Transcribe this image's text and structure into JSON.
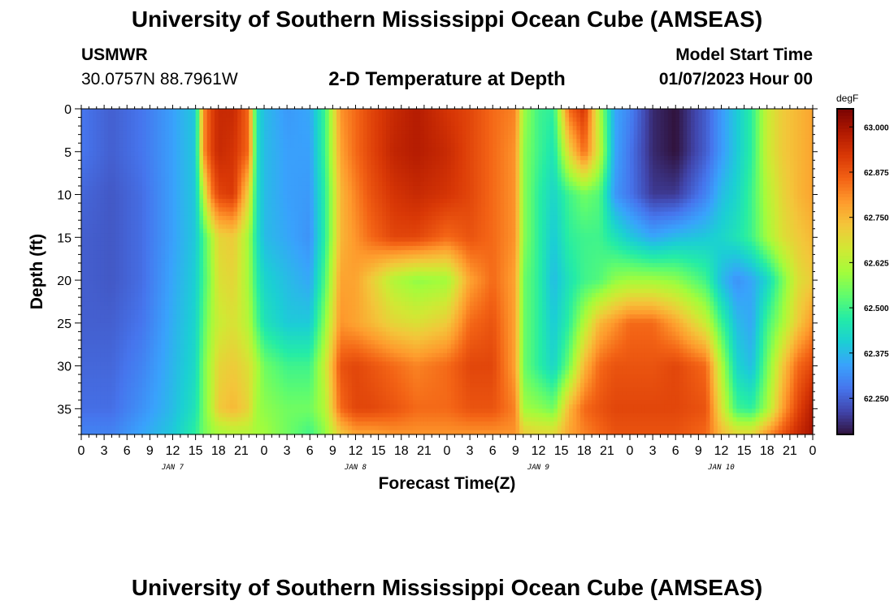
{
  "header": {
    "title": "University of Southern Mississippi Ocean Cube (AMSEAS)",
    "station": "USMWR",
    "coords": "30.0757N  88.7961W",
    "subtitle": "2-D Temperature at Depth",
    "model_start_label": "Model Start Time",
    "model_start_value": "01/07/2023 Hour 00"
  },
  "footer": {
    "title": "University of Southern Mississippi Ocean Cube (AMSEAS)"
  },
  "colors": {
    "colormap": [
      "#30123b",
      "#4145ab",
      "#4675ed",
      "#39a2fc",
      "#1bcfd4",
      "#24eca6",
      "#61fc6c",
      "#a4fc3b",
      "#d1e834",
      "#f3c63a",
      "#fe9b2d",
      "#f36315",
      "#d93806",
      "#b11901",
      "#7a0402"
    ]
  },
  "chart_data": {
    "type": "heatmap",
    "xlabel": "Forecast Time(Z)",
    "ylabel": "Depth (ft)",
    "colorbar_units": "degF",
    "x_range_hours": [
      0,
      96
    ],
    "y_range_ft": [
      0,
      38
    ],
    "x_ticks": [
      {
        "h": 0,
        "label": "0"
      },
      {
        "h": 3,
        "label": "3"
      },
      {
        "h": 6,
        "label": "6"
      },
      {
        "h": 9,
        "label": "9"
      },
      {
        "h": 12,
        "label": "12"
      },
      {
        "h": 15,
        "label": "15"
      },
      {
        "h": 18,
        "label": "18"
      },
      {
        "h": 21,
        "label": "21"
      },
      {
        "h": 24,
        "label": "0"
      },
      {
        "h": 27,
        "label": "3"
      },
      {
        "h": 30,
        "label": "6"
      },
      {
        "h": 33,
        "label": "9"
      },
      {
        "h": 36,
        "label": "12"
      },
      {
        "h": 39,
        "label": "15"
      },
      {
        "h": 42,
        "label": "18"
      },
      {
        "h": 45,
        "label": "21"
      },
      {
        "h": 48,
        "label": "0"
      },
      {
        "h": 51,
        "label": "3"
      },
      {
        "h": 54,
        "label": "6"
      },
      {
        "h": 57,
        "label": "9"
      },
      {
        "h": 60,
        "label": "12"
      },
      {
        "h": 63,
        "label": "15"
      },
      {
        "h": 66,
        "label": "18"
      },
      {
        "h": 69,
        "label": "21"
      },
      {
        "h": 72,
        "label": "0"
      },
      {
        "h": 75,
        "label": "3"
      },
      {
        "h": 78,
        "label": "6"
      },
      {
        "h": 81,
        "label": "9"
      },
      {
        "h": 84,
        "label": "12"
      },
      {
        "h": 87,
        "label": "15"
      },
      {
        "h": 90,
        "label": "18"
      },
      {
        "h": 93,
        "label": "21"
      },
      {
        "h": 96,
        "label": "0"
      }
    ],
    "date_labels": [
      {
        "h": 12,
        "label": "JAN 7"
      },
      {
        "h": 36,
        "label": "JAN 8"
      },
      {
        "h": 60,
        "label": "JAN 9"
      },
      {
        "h": 84,
        "label": "JAN 10"
      }
    ],
    "y_ticks": [
      0,
      5,
      10,
      15,
      20,
      25,
      30,
      35
    ],
    "colorbar": {
      "min": 62.15,
      "max": 63.05,
      "ticks": [
        {
          "v": 63.0,
          "label": "63.000"
        },
        {
          "v": 62.875,
          "label": "62.875"
        },
        {
          "v": 62.75,
          "label": "62.750"
        },
        {
          "v": 62.625,
          "label": "62.625"
        },
        {
          "v": 62.5,
          "label": "62.500"
        },
        {
          "v": 62.375,
          "label": "62.375"
        },
        {
          "v": 62.25,
          "label": "62.250"
        }
      ]
    },
    "grid_hours": [
      0,
      4,
      8,
      12,
      15,
      16,
      17,
      18,
      20,
      22,
      23,
      24,
      27,
      30,
      32,
      34,
      36,
      38,
      41,
      44,
      48,
      51,
      54,
      57,
      58,
      60,
      62,
      64,
      66,
      68,
      70,
      72,
      75,
      78,
      82,
      84,
      86,
      88,
      90,
      92,
      94,
      96
    ],
    "grid_depths": [
      0,
      5,
      10,
      15,
      20,
      25,
      30,
      35,
      38
    ],
    "values": [
      [
        62.28,
        62.25,
        62.28,
        62.34,
        62.4,
        62.8,
        62.9,
        62.95,
        62.95,
        62.85,
        62.45,
        62.38,
        62.33,
        62.35,
        62.5,
        62.8,
        62.85,
        62.9,
        62.95,
        62.98,
        62.93,
        62.9,
        62.85,
        62.82,
        62.6,
        62.5,
        62.48,
        62.85,
        62.93,
        62.62,
        62.35,
        62.3,
        62.18,
        62.15,
        62.25,
        62.33,
        62.4,
        62.48,
        62.65,
        62.72,
        62.75,
        62.78
      ],
      [
        62.28,
        62.25,
        62.28,
        62.34,
        62.4,
        62.8,
        62.9,
        62.95,
        62.93,
        62.85,
        62.45,
        62.38,
        62.34,
        62.34,
        62.5,
        62.78,
        62.85,
        62.9,
        62.96,
        62.98,
        62.95,
        62.9,
        62.85,
        62.8,
        62.58,
        62.5,
        62.45,
        62.7,
        62.85,
        62.65,
        62.35,
        62.28,
        62.18,
        62.15,
        62.25,
        62.33,
        62.4,
        62.48,
        62.65,
        62.72,
        62.75,
        62.78
      ],
      [
        62.26,
        62.24,
        62.27,
        62.34,
        62.4,
        62.62,
        62.82,
        62.9,
        62.92,
        62.7,
        62.45,
        62.38,
        62.34,
        62.33,
        62.48,
        62.75,
        62.82,
        62.88,
        62.93,
        62.95,
        62.93,
        62.9,
        62.85,
        62.8,
        62.58,
        62.48,
        62.42,
        62.5,
        62.55,
        62.52,
        62.33,
        62.28,
        62.2,
        62.2,
        62.3,
        62.38,
        62.42,
        62.5,
        62.62,
        62.7,
        62.75,
        62.78
      ],
      [
        62.25,
        62.24,
        62.27,
        62.34,
        62.4,
        62.5,
        62.6,
        62.7,
        62.72,
        62.6,
        62.45,
        62.38,
        62.35,
        62.32,
        62.48,
        62.75,
        62.8,
        62.85,
        62.9,
        62.9,
        62.85,
        62.88,
        62.85,
        62.8,
        62.58,
        62.48,
        62.4,
        62.48,
        62.5,
        62.5,
        62.45,
        62.4,
        62.35,
        62.38,
        62.4,
        62.42,
        62.45,
        62.5,
        62.6,
        62.68,
        62.72,
        62.75
      ],
      [
        62.25,
        62.24,
        62.27,
        62.35,
        62.41,
        62.5,
        62.58,
        62.68,
        62.7,
        62.6,
        62.48,
        62.42,
        62.38,
        62.35,
        62.52,
        62.78,
        62.78,
        62.72,
        62.62,
        62.58,
        62.6,
        62.78,
        62.85,
        62.78,
        62.55,
        62.48,
        62.38,
        62.45,
        62.5,
        62.52,
        62.58,
        62.6,
        62.6,
        62.58,
        62.5,
        62.38,
        62.32,
        62.35,
        62.42,
        62.55,
        62.68,
        62.72
      ],
      [
        62.25,
        62.25,
        62.28,
        62.36,
        62.42,
        62.52,
        62.6,
        62.65,
        62.68,
        62.62,
        62.52,
        62.45,
        62.4,
        62.4,
        62.58,
        62.8,
        62.78,
        62.75,
        62.7,
        62.68,
        62.72,
        62.85,
        62.88,
        62.78,
        62.55,
        62.48,
        62.4,
        62.48,
        62.62,
        62.75,
        62.8,
        62.85,
        62.85,
        62.78,
        62.65,
        62.5,
        62.38,
        62.35,
        62.5,
        62.6,
        62.72,
        62.8
      ],
      [
        62.26,
        62.26,
        62.3,
        62.37,
        62.43,
        62.55,
        62.62,
        62.7,
        62.72,
        62.68,
        62.62,
        62.55,
        62.5,
        62.5,
        62.65,
        62.88,
        62.9,
        62.88,
        62.85,
        62.82,
        62.85,
        62.9,
        62.9,
        62.78,
        62.55,
        62.48,
        62.42,
        62.55,
        62.75,
        62.85,
        62.88,
        62.88,
        62.88,
        62.9,
        62.85,
        62.62,
        62.42,
        62.38,
        62.55,
        62.72,
        62.85,
        62.9
      ],
      [
        62.27,
        62.27,
        62.32,
        62.38,
        62.45,
        62.55,
        62.62,
        62.72,
        62.75,
        62.7,
        62.6,
        62.58,
        62.55,
        62.55,
        62.62,
        62.85,
        62.9,
        62.9,
        62.88,
        62.85,
        62.85,
        62.88,
        62.88,
        62.82,
        62.6,
        62.58,
        62.55,
        62.75,
        62.85,
        62.88,
        62.9,
        62.9,
        62.9,
        62.9,
        62.88,
        62.68,
        62.5,
        62.48,
        62.6,
        62.78,
        62.9,
        62.98
      ],
      [
        62.3,
        62.3,
        62.35,
        62.4,
        62.48,
        62.55,
        62.58,
        62.6,
        62.62,
        62.62,
        62.6,
        62.6,
        62.55,
        62.5,
        62.58,
        62.72,
        62.78,
        62.78,
        62.8,
        62.8,
        62.8,
        62.8,
        62.8,
        62.8,
        62.72,
        62.7,
        62.7,
        62.78,
        62.82,
        62.85,
        62.88,
        62.88,
        62.88,
        62.88,
        62.85,
        62.75,
        62.7,
        62.7,
        62.8,
        62.88,
        62.95,
        63.0
      ]
    ]
  }
}
